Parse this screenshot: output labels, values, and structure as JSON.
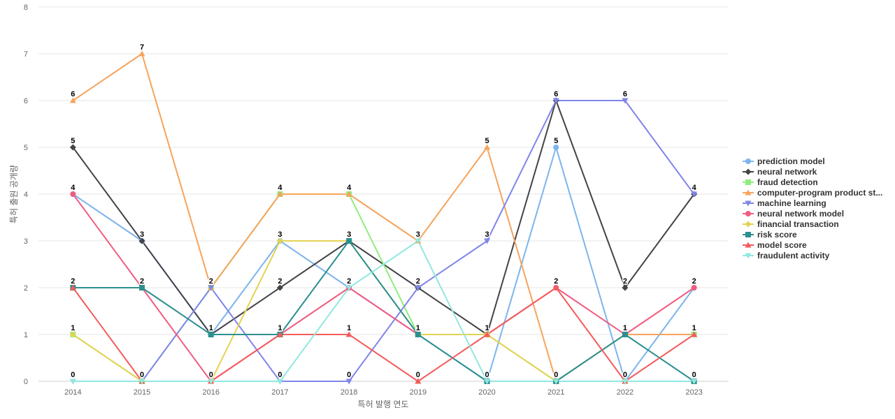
{
  "chart_data": {
    "type": "line",
    "xlabel": "특허 발행 연도",
    "ylabel": "특허 출원 공개량",
    "ylim": [
      0,
      8
    ],
    "yticks": [
      0,
      1,
      2,
      3,
      4,
      5,
      6,
      7,
      8
    ],
    "grid": true,
    "legend_position": "right",
    "categories": [
      "2014",
      "2015",
      "2016",
      "2017",
      "2018",
      "2019",
      "2020",
      "2021",
      "2022",
      "2023"
    ],
    "series": [
      {
        "name": "prediction model",
        "color": "#7cb5ec",
        "marker": "circle",
        "values": [
          4,
          3,
          1,
          3,
          2,
          1,
          0,
          5,
          0,
          2
        ]
      },
      {
        "name": "neural network",
        "color": "#434348",
        "marker": "diamond",
        "values": [
          5,
          3,
          1,
          2,
          3,
          2,
          1,
          6,
          2,
          4
        ]
      },
      {
        "name": "fraud detection",
        "color": "#90ed7d",
        "marker": "square",
        "values": [
          1,
          0,
          2,
          4,
          4,
          1,
          1,
          0,
          1,
          1
        ]
      },
      {
        "name": "computer-program product st...",
        "color": "#f7a35c",
        "marker": "triangle",
        "values": [
          6,
          7,
          2,
          4,
          4,
          3,
          5,
          0,
          1,
          1
        ]
      },
      {
        "name": "machine learning",
        "color": "#8085e9",
        "marker": "triangle-down",
        "values": [
          0,
          0,
          2,
          0,
          0,
          2,
          3,
          6,
          6,
          4
        ]
      },
      {
        "name": "neural network model",
        "color": "#f15c80",
        "marker": "circle",
        "values": [
          4,
          2,
          0,
          1,
          2,
          1,
          1,
          2,
          1,
          2
        ]
      },
      {
        "name": "financial transaction",
        "color": "#e4d354",
        "marker": "diamond",
        "values": [
          1,
          0,
          0,
          3,
          3,
          1,
          1,
          0,
          0,
          0
        ]
      },
      {
        "name": "risk score",
        "color": "#2b908f",
        "marker": "square",
        "values": [
          2,
          2,
          1,
          1,
          3,
          1,
          0,
          0,
          1,
          0
        ]
      },
      {
        "name": "model score",
        "color": "#f45b5b",
        "marker": "triangle",
        "values": [
          2,
          0,
          0,
          1,
          1,
          0,
          1,
          2,
          0,
          1
        ]
      },
      {
        "name": "fraudulent activity",
        "color": "#91e8e1",
        "marker": "triangle-down",
        "values": [
          0,
          0,
          0,
          0,
          2,
          3,
          0,
          0,
          0,
          0
        ]
      }
    ],
    "point_labels": [
      {
        "x": "2014",
        "value": 6
      },
      {
        "x": "2014",
        "value": 5
      },
      {
        "x": "2014",
        "value": 4
      },
      {
        "x": "2014",
        "value": 2
      },
      {
        "x": "2014",
        "value": 1
      },
      {
        "x": "2014",
        "value": 0
      },
      {
        "x": "2015",
        "value": 7
      },
      {
        "x": "2015",
        "value": 3
      },
      {
        "x": "2015",
        "value": 2
      },
      {
        "x": "2015",
        "value": 0
      },
      {
        "x": "2016",
        "value": 2
      },
      {
        "x": "2016",
        "value": 1
      },
      {
        "x": "2016",
        "value": 0
      },
      {
        "x": "2017",
        "value": 4
      },
      {
        "x": "2017",
        "value": 3
      },
      {
        "x": "2017",
        "value": 2
      },
      {
        "x": "2017",
        "value": 1
      },
      {
        "x": "2017",
        "value": 0
      },
      {
        "x": "2018",
        "value": 4
      },
      {
        "x": "2018",
        "value": 3
      },
      {
        "x": "2018",
        "value": 2
      },
      {
        "x": "2018",
        "value": 1
      },
      {
        "x": "2018",
        "value": 0
      },
      {
        "x": "2019",
        "value": 3
      },
      {
        "x": "2019",
        "value": 2
      },
      {
        "x": "2019",
        "value": 1
      },
      {
        "x": "2019",
        "value": 0
      },
      {
        "x": "2020",
        "value": 5
      },
      {
        "x": "2020",
        "value": 3
      },
      {
        "x": "2020",
        "value": 1
      },
      {
        "x": "2020",
        "value": 0
      },
      {
        "x": "2021",
        "value": 6
      },
      {
        "x": "2021",
        "value": 5
      },
      {
        "x": "2021",
        "value": 2
      },
      {
        "x": "2021",
        "value": 0
      },
      {
        "x": "2022",
        "value": 6
      },
      {
        "x": "2022",
        "value": 2
      },
      {
        "x": "2022",
        "value": 1
      },
      {
        "x": "2022",
        "value": 0
      },
      {
        "x": "2023",
        "value": 4
      },
      {
        "x": "2023",
        "value": 2
      },
      {
        "x": "2023",
        "value": 1
      },
      {
        "x": "2023",
        "value": 0
      }
    ]
  }
}
